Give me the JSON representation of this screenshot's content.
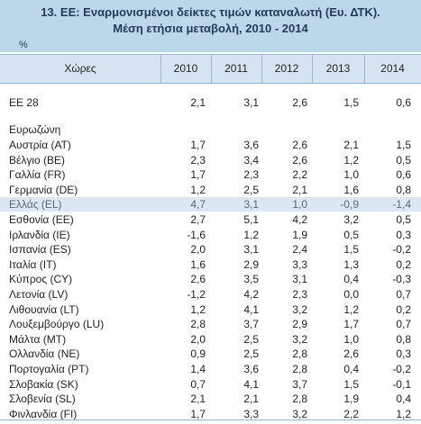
{
  "title": {
    "line1": "13. ΕΕ: Εναρμονισμένοι δείκτες τιμών καταναλωτή (Ευ. ΔΤΚ).",
    "line2": "Μέση ετήσια μεταβολή, 2010 - 2014",
    "unit": "%"
  },
  "header": {
    "countries": "Χώρες",
    "years": [
      "2010",
      "2011",
      "2012",
      "2013",
      "2014"
    ]
  },
  "eu_row": {
    "name": "ΕΕ 28",
    "values": [
      "2,1",
      "3,1",
      "2,6",
      "1,5",
      "0,6"
    ]
  },
  "section_label": "Ευρωζώνη",
  "rows": [
    {
      "name": "Αυστρία (AT)",
      "values": [
        "1,7",
        "3,6",
        "2,6",
        "2,1",
        "1,5"
      ]
    },
    {
      "name": "Βέλγιο (BE)",
      "values": [
        "2,3",
        "3,4",
        "2,6",
        "1,2",
        "0,5"
      ]
    },
    {
      "name": "Γαλλία (FR)",
      "values": [
        "1,7",
        "2,3",
        "2,2",
        "1,0",
        "0,6"
      ]
    },
    {
      "name": "Γερμανία (DE)",
      "values": [
        "1,2",
        "2,5",
        "2,1",
        "1,6",
        "0,8"
      ]
    },
    {
      "name": "Ελλάς (EL)",
      "values": [
        "4,7",
        "3,1",
        "1,0",
        "-0,9",
        "-1,4"
      ],
      "highlight": true
    },
    {
      "name": "Εσθονία (EE)",
      "values": [
        "2,7",
        "5,1",
        "4,2",
        "3,2",
        "0,5"
      ]
    },
    {
      "name": "Ιρλανδία (IE)",
      "values": [
        "-1,6",
        "1,2",
        "1,9",
        "0,5",
        "0,3"
      ]
    },
    {
      "name": "Ισπανία (ES)",
      "values": [
        "2,0",
        "3,1",
        "2,4",
        "1,5",
        "-0,2"
      ]
    },
    {
      "name": "Ιταλία (IT)",
      "values": [
        "1,6",
        "2,9",
        "3,3",
        "1,3",
        "0,2"
      ]
    },
    {
      "name": "Κύπρος (CY)",
      "values": [
        "2,6",
        "3,5",
        "3,1",
        "0,4",
        "-0,3"
      ]
    },
    {
      "name": "Λετονία (LV)",
      "values": [
        "-1,2",
        "4,2",
        "2,3",
        "0,0",
        "0,7"
      ]
    },
    {
      "name": "Λιθουανία (LT)",
      "values": [
        "1,2",
        "4,1",
        "3,2",
        "1,2",
        "0,2"
      ]
    },
    {
      "name": "Λουξεμβούργο (LU)",
      "values": [
        "2,8",
        "3,7",
        "2,9",
        "1,7",
        "0,7"
      ]
    },
    {
      "name": "Μάλτα (MT)",
      "values": [
        "2,0",
        "2,5",
        "3,2",
        "1,0",
        "0,8"
      ]
    },
    {
      "name": "Ολλανδία (NE)",
      "values": [
        "0,9",
        "2,5",
        "2,8",
        "2,6",
        "0,3"
      ]
    },
    {
      "name": "Πορτογαλία (PT)",
      "values": [
        "1,4",
        "3,6",
        "2,8",
        "0,4",
        "-0,2"
      ]
    },
    {
      "name": "Σλοβακία (SK)",
      "values": [
        "0,7",
        "4,1",
        "3,7",
        "1,5",
        "-0,1"
      ]
    },
    {
      "name": "Σλοβενία (SL)",
      "values": [
        "2,1",
        "2,1",
        "2,8",
        "1,9",
        "0,4"
      ]
    },
    {
      "name": "Φινλανδία (FI)",
      "values": [
        "1,7",
        "3,3",
        "3,2",
        "2,2",
        "1,2"
      ]
    }
  ]
}
